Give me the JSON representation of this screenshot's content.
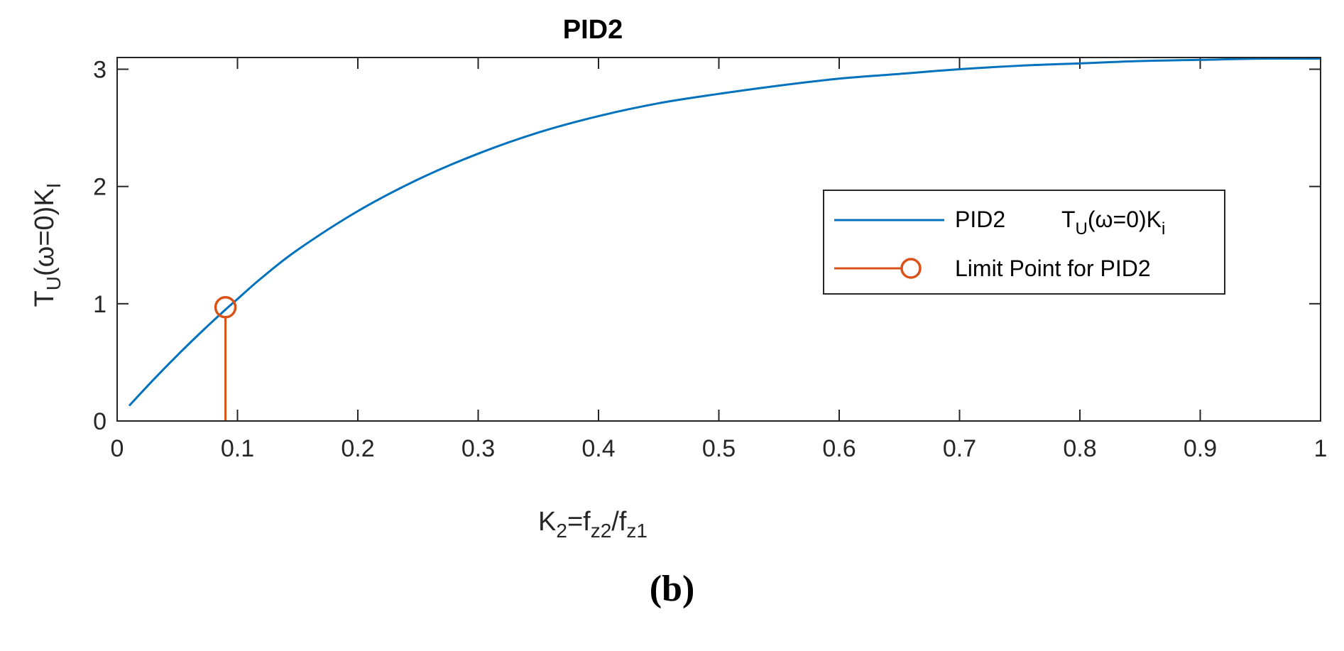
{
  "chart_data": {
    "type": "line",
    "title": "PID2",
    "xlabel": {
      "base": "K",
      "sub1": "2",
      "mid": "=f",
      "sub2": "z2",
      "mid2": "/f",
      "sub3": "z1"
    },
    "ylabel": {
      "base": "T",
      "sub1": "U",
      "mid": "(ω=0)K",
      "sub2": "I"
    },
    "xlim": [
      0,
      1
    ],
    "ylim": [
      0,
      3.1
    ],
    "xticks": [
      0,
      0.1,
      0.2,
      0.3,
      0.4,
      0.5,
      0.6,
      0.7,
      0.8,
      0.9,
      1
    ],
    "xtick_labels": [
      "0",
      "0.1",
      "0.2",
      "0.3",
      "0.4",
      "0.5",
      "0.6",
      "0.7",
      "0.8",
      "0.9",
      "1"
    ],
    "yticks": [
      0,
      1,
      2,
      3
    ],
    "ytick_labels": [
      "0",
      "1",
      "2",
      "3"
    ],
    "series": [
      {
        "name": "PID2",
        "color": "#0072BD",
        "x": [
          0.01,
          0.03,
          0.05,
          0.07,
          0.09,
          0.1,
          0.12,
          0.15,
          0.2,
          0.25,
          0.3,
          0.35,
          0.4,
          0.45,
          0.5,
          0.55,
          0.6,
          0.65,
          0.7,
          0.75,
          0.8,
          0.85,
          0.9,
          0.95,
          1.0
        ],
        "y": [
          0.13,
          0.35,
          0.56,
          0.76,
          0.95,
          1.04,
          1.22,
          1.46,
          1.79,
          2.06,
          2.28,
          2.46,
          2.6,
          2.71,
          2.79,
          2.86,
          2.92,
          2.96,
          3.0,
          3.03,
          3.05,
          3.07,
          3.08,
          3.09,
          3.09
        ]
      }
    ],
    "stem": {
      "name": "Limit Point for PID2",
      "color": "#D95319",
      "x": 0.09,
      "y": 0.97
    },
    "legend": {
      "position": "right-middle",
      "entry1": {
        "label": "PID2",
        "expr_base": "T",
        "expr_sub1": "U",
        "expr_mid": "(ω=0)K",
        "expr_sub2": "i"
      },
      "entry2": {
        "label": "Limit Point for PID2"
      }
    }
  },
  "caption": "(b)"
}
